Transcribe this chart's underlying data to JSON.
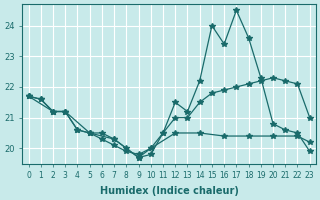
{
  "xlabel": "Humidex (Indice chaleur)",
  "ylabel": "",
  "bg_color": "#c8eaea",
  "grid_color": "#ffffff",
  "line_color": "#1a6b6b",
  "xlim": [
    -0.5,
    23.5
  ],
  "ylim": [
    19.5,
    24.7
  ],
  "yticks": [
    20,
    21,
    22,
    23,
    24
  ],
  "xticks": [
    0,
    1,
    2,
    3,
    4,
    5,
    6,
    7,
    8,
    9,
    10,
    11,
    12,
    13,
    14,
    15,
    16,
    17,
    18,
    19,
    20,
    21,
    22,
    23
  ],
  "lines": [
    [
      0,
      21.7,
      1,
      21.6,
      2,
      21.2,
      3,
      21.2,
      4,
      20.6,
      5,
      20.5,
      6,
      20.3,
      7,
      20.1,
      8,
      19.9,
      9,
      19.8,
      10,
      20.0,
      11,
      20.5,
      12,
      21.5,
      13,
      21.2,
      14,
      22.2,
      15,
      24.0,
      16,
      23.4,
      17,
      24.5,
      18,
      23.6,
      19,
      22.3,
      20,
      20.8,
      21,
      20.6,
      22,
      20.5,
      23,
      19.9
    ],
    [
      0,
      21.7,
      1,
      21.6,
      2,
      21.2,
      3,
      21.2,
      4,
      20.6,
      5,
      20.5,
      6,
      20.5,
      7,
      20.3,
      8,
      20.0,
      9,
      19.7,
      10,
      19.8,
      11,
      20.5,
      12,
      21.0,
      13,
      21.0,
      14,
      21.5,
      15,
      21.8,
      16,
      21.9,
      17,
      22.0,
      18,
      22.1,
      19,
      22.2,
      20,
      22.3,
      21,
      22.2,
      22,
      22.1,
      23,
      21.0
    ],
    [
      0,
      21.7,
      2,
      21.2,
      3,
      21.2,
      5,
      20.5,
      7,
      20.3,
      9,
      19.7,
      10,
      20.0,
      12,
      20.5,
      14,
      20.5,
      16,
      20.4,
      18,
      20.4,
      20,
      20.4,
      22,
      20.4,
      23,
      20.2
    ]
  ]
}
